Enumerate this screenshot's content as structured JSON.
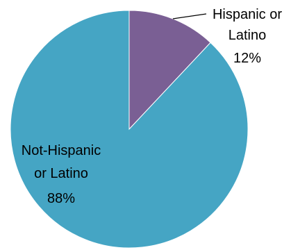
{
  "chart_data": {
    "type": "pie",
    "slices": [
      {
        "label_lines": [
          "Hispanic or",
          "Latino"
        ],
        "value": 12,
        "value_text": "12%",
        "color": "#7a5f94"
      },
      {
        "label_lines": [
          "Not-Hispanic",
          "or Latino"
        ],
        "value": 88,
        "value_text": "88%",
        "color": "#45a5c4"
      }
    ]
  }
}
